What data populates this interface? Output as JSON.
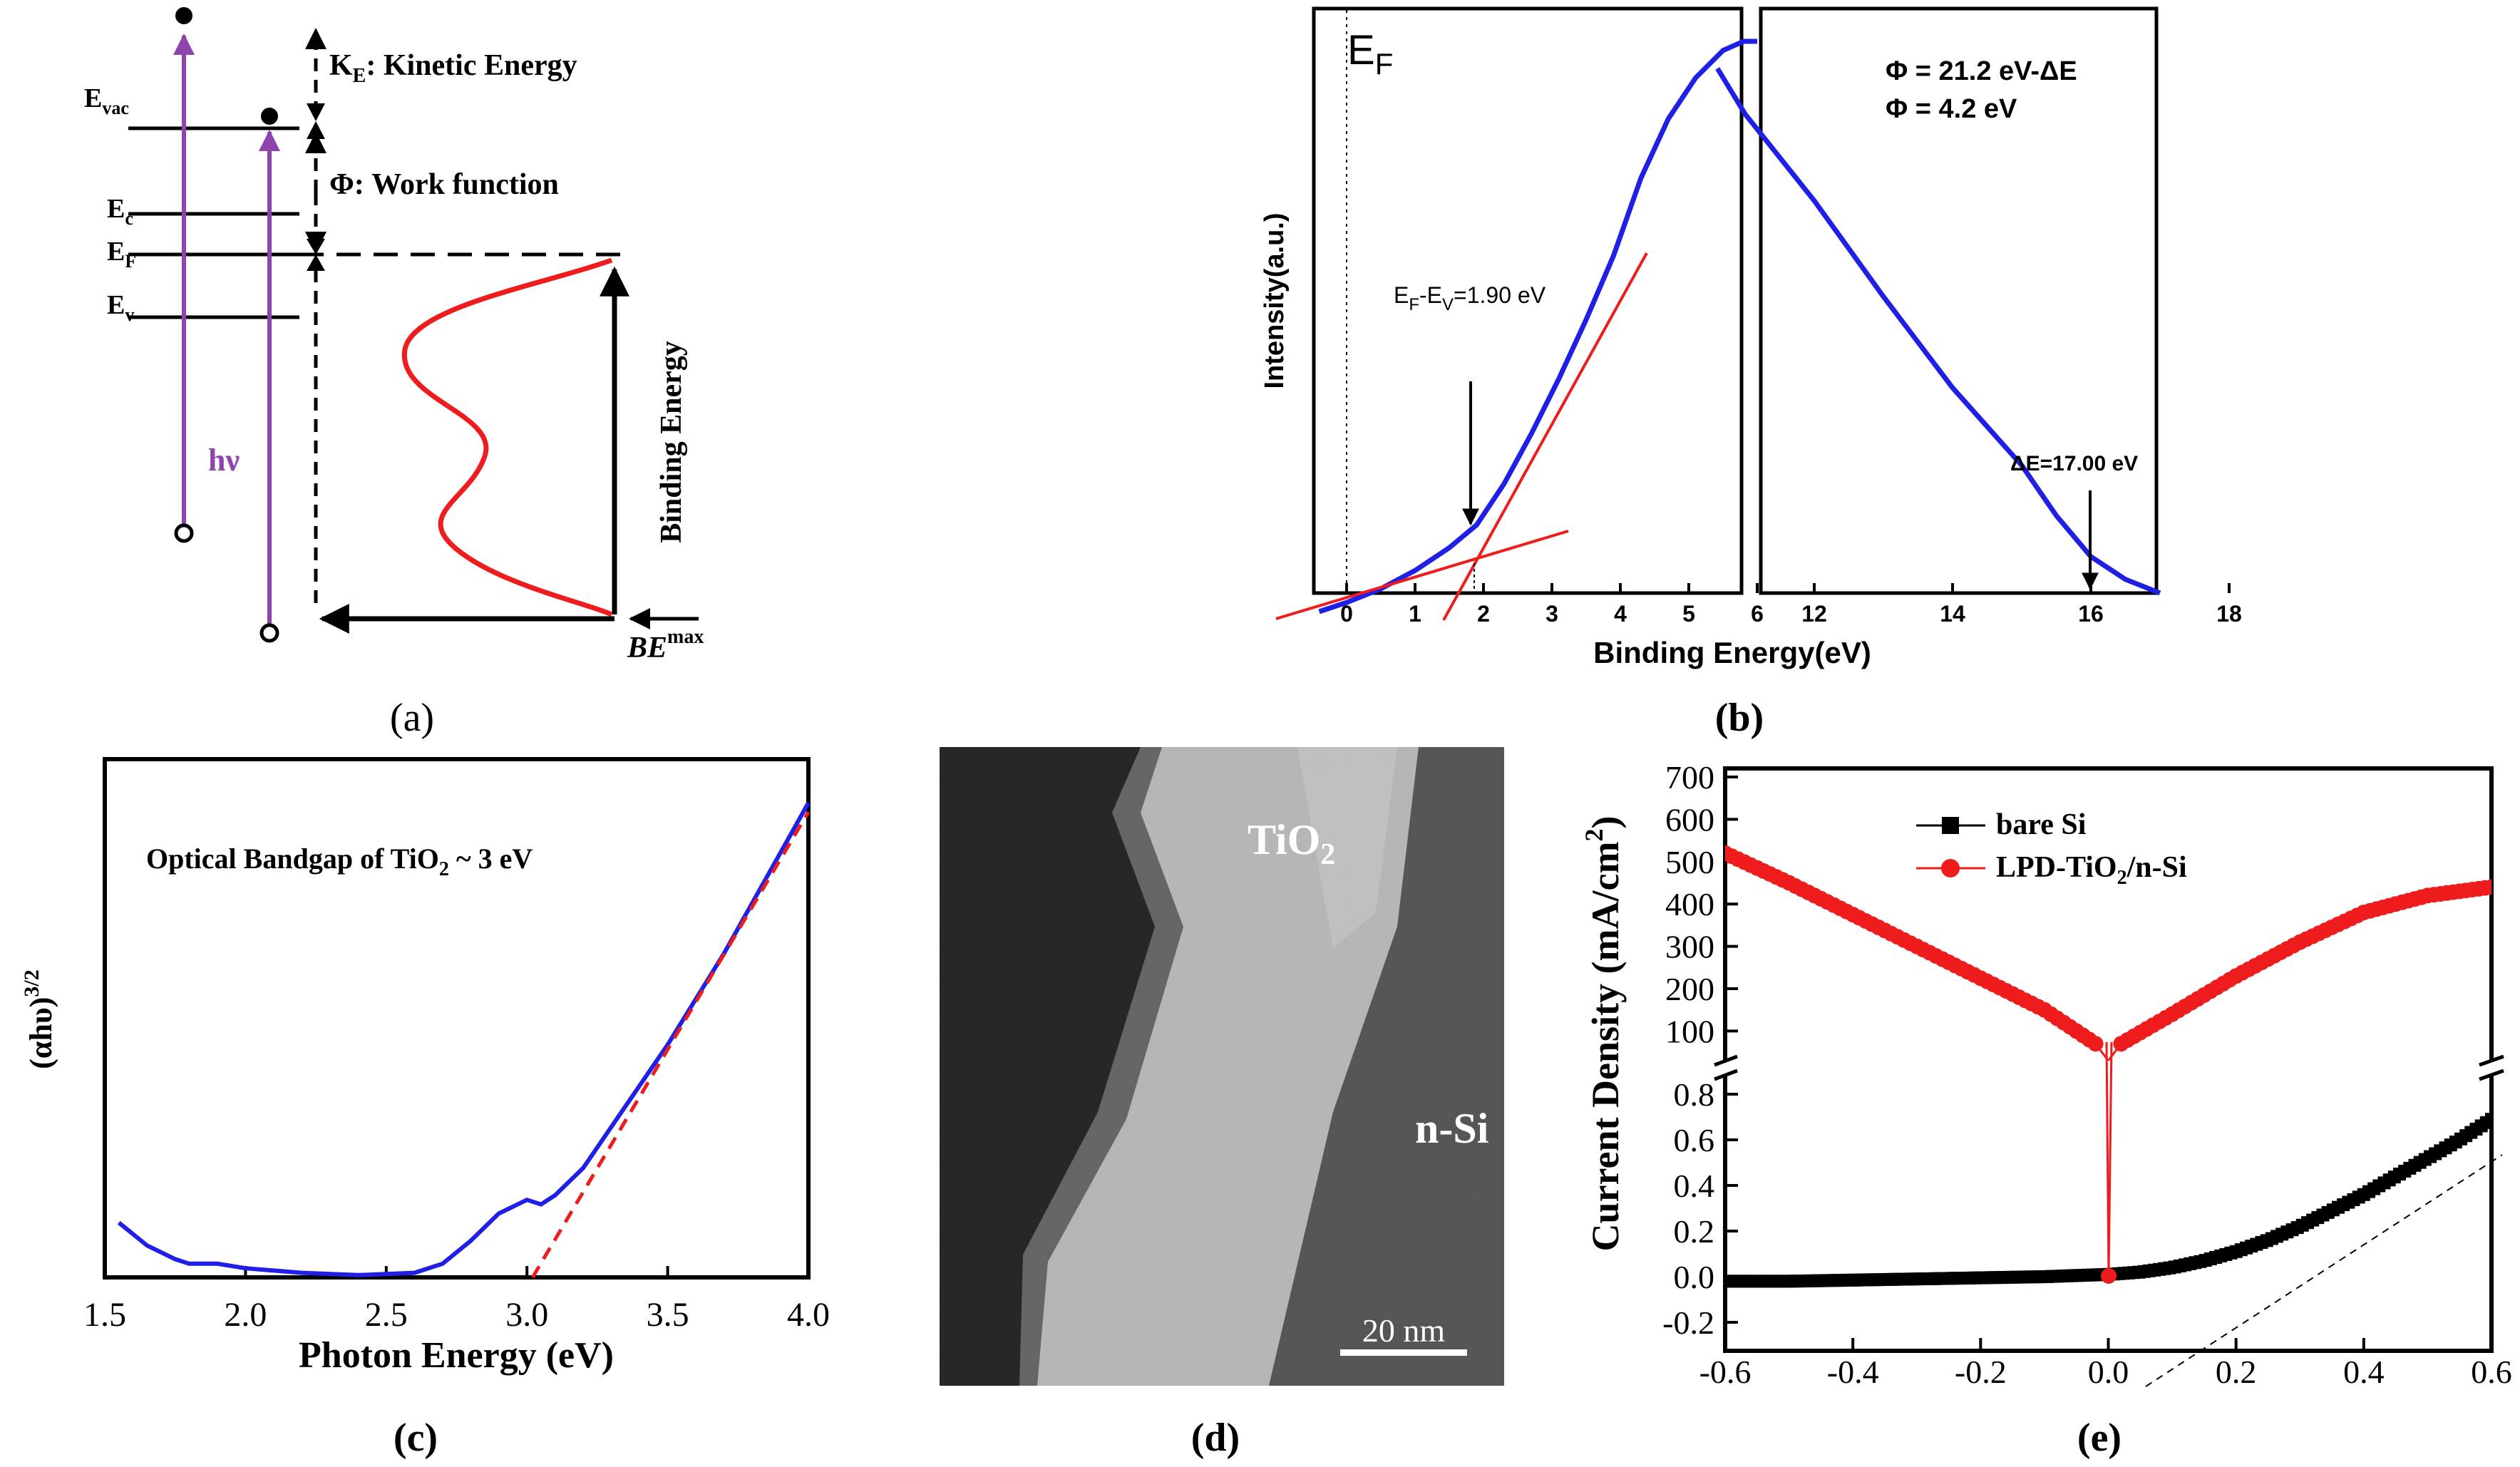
{
  "colors": {
    "blue": "#1f1fe6",
    "red": "#ee1c1c",
    "purple": "#8e44ad",
    "black": "#000000"
  },
  "panel_a": {
    "caption": "(a)",
    "levels": {
      "evac": "E",
      "evac_sub": "vac",
      "ec": "E",
      "ec_sub": "c",
      "ef": "E",
      "ef_sub": "F",
      "ev": "E",
      "ev_sub": "v"
    },
    "ke_label_pre": "K",
    "ke_label_sub": "E",
    "ke_label_post": ": Kinetic Energy",
    "wf_label": "Φ: Work function",
    "hv_label": "hν",
    "be_label": "Binding Energy",
    "bemax_label": "BE",
    "bemax_sup": "max"
  },
  "panel_b": {
    "caption": "(b)",
    "ef_label": "E",
    "ef_sub": "F",
    "ylabel": "Intensity(a.u.)",
    "xlabel": "Binding Energy(eV)",
    "annot_gap_pre": "E",
    "annot_gap_sub1": "F",
    "annot_gap_mid": "-E",
    "annot_gap_sub2": "V",
    "annot_gap_post": "=1.90 eV",
    "phi_formula": "Φ = 21.2 eV-ΔE",
    "phi_value": "Φ = 4.2 eV",
    "delta_e_label": "ΔE=17.00 eV",
    "ticks_left": [
      "0",
      "1",
      "2",
      "3",
      "4",
      "5",
      "6"
    ],
    "ticks_right": [
      "12",
      "14",
      "16",
      "18"
    ]
  },
  "panel_c": {
    "caption": "(c)",
    "ylabel": "(αhυ)",
    "ylabel_sup": "3/2",
    "xlabel": "Photon Energy (eV)",
    "annot_pre": "Optical Bandgap of TiO",
    "annot_sub": "2",
    "annot_post": " ~ 3 eV",
    "ticks": [
      "1.5",
      "2.0",
      "2.5",
      "3.0",
      "3.5",
      "4.0"
    ]
  },
  "panel_d": {
    "caption": "(d)",
    "tio2_label": "TiO",
    "tio2_sub": "2",
    "nsi_label": "n-Si",
    "scalebar_label": "20 nm"
  },
  "panel_e": {
    "caption": "(e)",
    "ylabel": "Current Density (mA/cm",
    "ylabel_sup": "2",
    "ylabel_post": ")",
    "yticks_top": [
      "700",
      "600",
      "500",
      "400",
      "300",
      "200",
      "100"
    ],
    "yticks_bottom": [
      "0.8",
      "0.6",
      "0.4",
      "0.2",
      "0.0",
      "-0.2"
    ],
    "xticks": [
      "-0.6",
      "-0.4",
      "-0.2",
      "0.0",
      "0.2",
      "0.4",
      "0.6"
    ],
    "legend": [
      {
        "name": "bare Si",
        "color": "#000000"
      },
      {
        "name": "LPD-TiO",
        "sub": "2",
        "post": "/n-Si",
        "color": "#ee1c1c"
      }
    ]
  },
  "chart_data": [
    {
      "type": "line",
      "panel": "b-left",
      "xlabel": "Binding Energy(eV)",
      "ylabel": "Intensity(a.u.)",
      "xlim": [
        -0.7,
        6
      ],
      "x": [
        -0.4,
        0,
        0.5,
        1,
        1.5,
        1.9,
        2.3,
        2.7,
        3.1,
        3.5,
        3.9,
        4.3,
        4.7,
        5.1,
        5.5,
        5.8,
        6
      ],
      "values": [
        0.0,
        0.02,
        0.05,
        0.09,
        0.14,
        0.19,
        0.28,
        0.39,
        0.51,
        0.64,
        0.78,
        0.95,
        1.08,
        1.17,
        1.23,
        1.25,
        1.25
      ],
      "annotations": [
        {
          "x": 1.9,
          "label": "EF-EV=1.90 eV"
        }
      ]
    },
    {
      "type": "line",
      "panel": "b-right",
      "xlabel": "Binding Energy(eV)",
      "xlim": [
        10.6,
        19
      ],
      "x": [
        10.6,
        11,
        12,
        13,
        14,
        15,
        15.5,
        16,
        16.5,
        17
      ],
      "values": [
        1.15,
        1.05,
        0.86,
        0.65,
        0.45,
        0.28,
        0.17,
        0.08,
        0.03,
        0.0
      ],
      "annotations": [
        {
          "x": 17.0,
          "label": "ΔE=17.00 eV"
        }
      ]
    },
    {
      "type": "line",
      "panel": "c",
      "xlabel": "Photon Energy (eV)",
      "ylabel": "(αhυ)3/2",
      "xlim": [
        1.5,
        4.0
      ],
      "x": [
        1.55,
        1.65,
        1.75,
        1.8,
        1.9,
        2.0,
        2.2,
        2.4,
        2.6,
        2.7,
        2.8,
        2.9,
        3.0,
        3.05,
        3.1,
        3.2,
        3.3,
        3.4,
        3.5,
        3.6,
        3.7,
        3.8,
        3.9,
        4.0
      ],
      "values": [
        0.12,
        0.07,
        0.04,
        0.03,
        0.03,
        0.02,
        0.01,
        0.005,
        0.01,
        0.03,
        0.08,
        0.14,
        0.17,
        0.16,
        0.18,
        0.24,
        0.33,
        0.42,
        0.51,
        0.61,
        0.71,
        0.82,
        0.93,
        1.04
      ],
      "fit_line": {
        "x": [
          3.02,
          4.0
        ],
        "y": [
          0.0,
          1.02
        ]
      }
    },
    {
      "type": "line",
      "panel": "e",
      "xlabel": "",
      "ylabel": "Current Density (mA/cm2)",
      "xlim": [
        -0.6,
        0.6
      ],
      "series": [
        {
          "name": "bare Si",
          "x": [
            -0.6,
            -0.5,
            -0.4,
            -0.3,
            -0.2,
            -0.1,
            0.0,
            0.05,
            0.1,
            0.15,
            0.2,
            0.25,
            0.3,
            0.35,
            0.4,
            0.45,
            0.5,
            0.55,
            0.6
          ],
          "values": [
            -0.02,
            -0.02,
            -0.015,
            -0.01,
            -0.005,
            0.0,
            0.01,
            0.02,
            0.04,
            0.07,
            0.11,
            0.16,
            0.22,
            0.29,
            0.36,
            0.44,
            0.52,
            0.6,
            0.69
          ]
        },
        {
          "name": "LPD-TiO2/n-Si",
          "x": [
            -0.6,
            -0.5,
            -0.4,
            -0.3,
            -0.2,
            -0.1,
            -0.02,
            0.0,
            0.02,
            0.1,
            0.2,
            0.3,
            0.4,
            0.5,
            0.6
          ],
          "values": [
            520,
            450,
            375,
            300,
            225,
            150,
            70,
            30,
            70,
            140,
            230,
            310,
            380,
            420,
            440
          ]
        }
      ]
    }
  ]
}
